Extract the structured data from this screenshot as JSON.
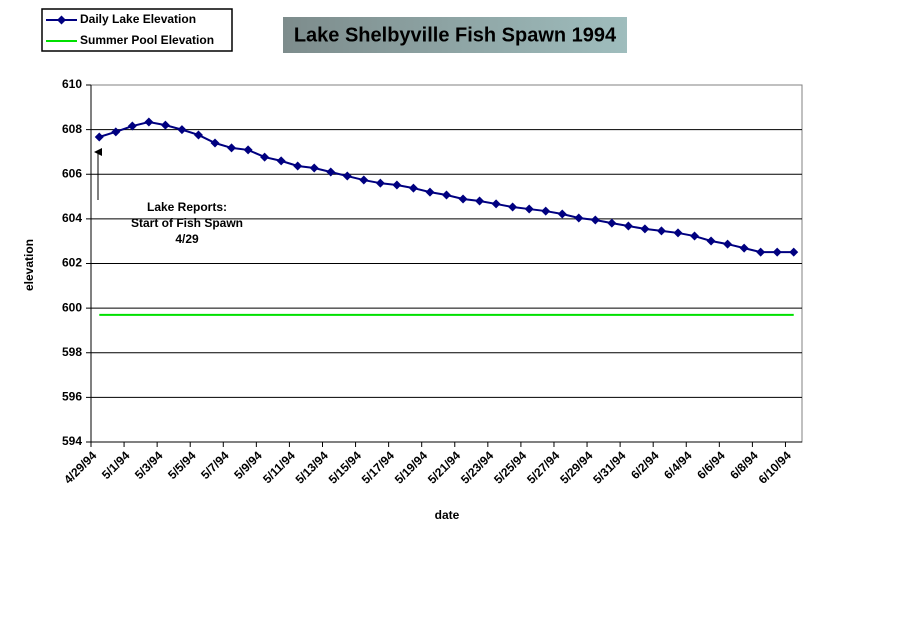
{
  "chart_data": {
    "type": "line",
    "title": "Lake Shelbyville Fish Spawn 1994",
    "x_label": "date",
    "y_label": "elevation",
    "annotation": [
      "Lake Reports:",
      "Start of Fish Spawn",
      "4/29"
    ],
    "categories": [
      "4/29/94",
      null,
      "5/1/94",
      null,
      "5/3/94",
      null,
      "5/5/94",
      null,
      "5/7/94",
      null,
      "5/9/94",
      null,
      "5/11/94",
      null,
      "5/13/94",
      null,
      "5/15/94",
      null,
      "5/17/94",
      null,
      "5/19/94",
      null,
      "5/21/94",
      null,
      "5/23/94",
      null,
      "5/25/94",
      null,
      "5/27/94",
      null,
      "5/29/94",
      null,
      "5/31/94",
      null,
      "6/2/94",
      null,
      "6/4/94",
      null,
      "6/6/94",
      null,
      "6/8/94",
      null,
      "6/10/94"
    ],
    "series": [
      {
        "name": "Daily Lake Elevation",
        "color": "#000080",
        "marker": "diamond",
        "values": [
          607.67,
          607.9,
          608.16,
          608.34,
          608.2,
          608.0,
          607.76,
          607.4,
          607.18,
          607.09,
          606.77,
          606.6,
          606.37,
          606.28,
          606.1,
          605.92,
          605.74,
          605.6,
          605.52,
          605.38,
          605.2,
          605.07,
          604.89,
          604.8,
          604.67,
          604.53,
          604.44,
          604.35,
          604.22,
          604.04,
          603.95,
          603.81,
          603.68,
          603.55,
          603.46,
          603.37,
          603.23,
          603.01,
          602.87,
          602.69,
          602.51,
          602.51,
          602.51
        ]
      },
      {
        "name": "Summer Pool Elevation",
        "color": "#00e000",
        "values": [
          599.7,
          599.7,
          599.7,
          599.7,
          599.7,
          599.7,
          599.7,
          599.7,
          599.7,
          599.7,
          599.7,
          599.7,
          599.7,
          599.7,
          599.7,
          599.7,
          599.7,
          599.7,
          599.7,
          599.7,
          599.7,
          599.7,
          599.7,
          599.7,
          599.7,
          599.7,
          599.7,
          599.7,
          599.7,
          599.7,
          599.7,
          599.7,
          599.7,
          599.7,
          599.7,
          599.7,
          599.7,
          599.7,
          599.7,
          599.7,
          599.7,
          599.7,
          599.7
        ]
      }
    ],
    "ylim": [
      594,
      610
    ],
    "yticks": [
      594,
      596,
      598,
      600,
      602,
      604,
      606,
      608,
      610
    ],
    "grid": true,
    "legend": "top-left"
  }
}
